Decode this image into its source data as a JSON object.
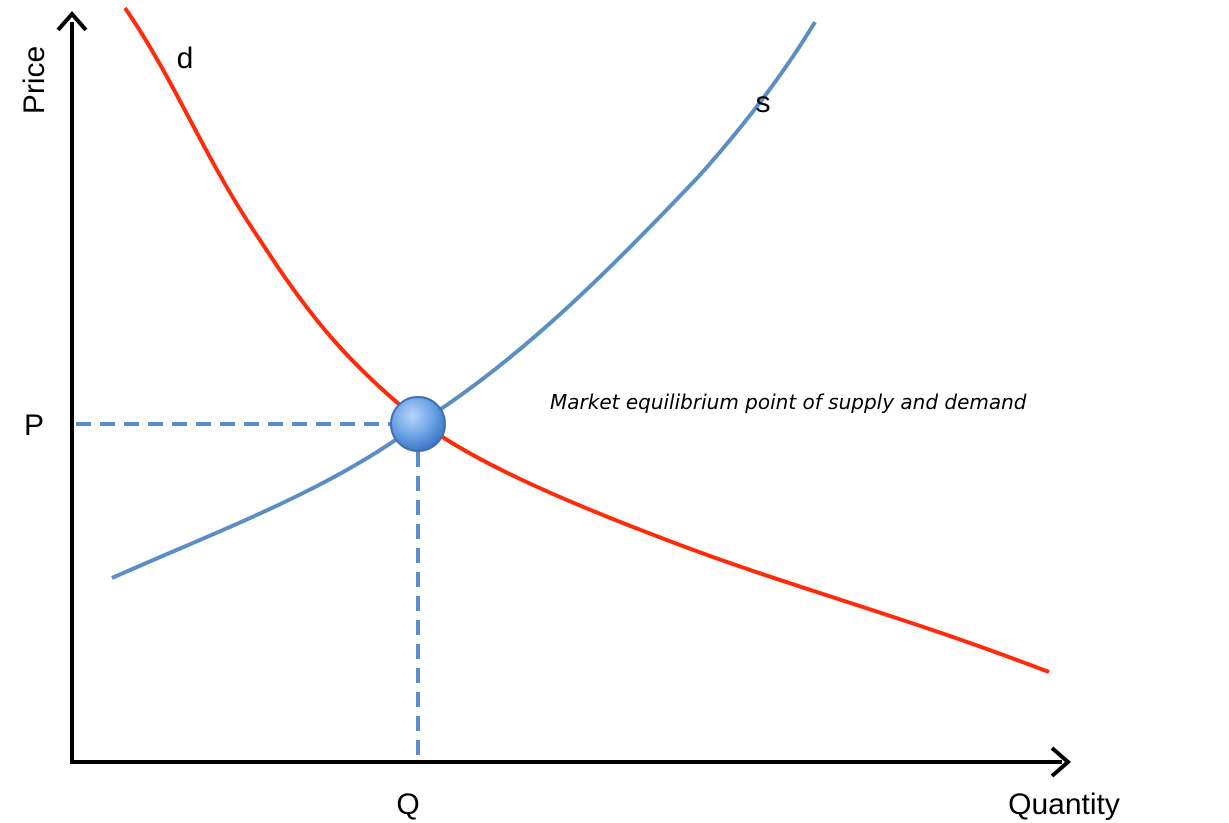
{
  "diagram": {
    "y_axis_label": "Price",
    "x_axis_label": "Quantity",
    "price_marker": "P",
    "quantity_marker": "Q",
    "demand_label": "d",
    "supply_label": "s",
    "annotation": "Market equilibrium point of supply and demand",
    "colors": {
      "demand": "#ff2a0a",
      "supply": "#5b8ec4",
      "guides": "#5b8ec4",
      "axes": "#000000",
      "point_fill": "#6fa6e8"
    },
    "point_icon": "equilibrium-dot"
  }
}
